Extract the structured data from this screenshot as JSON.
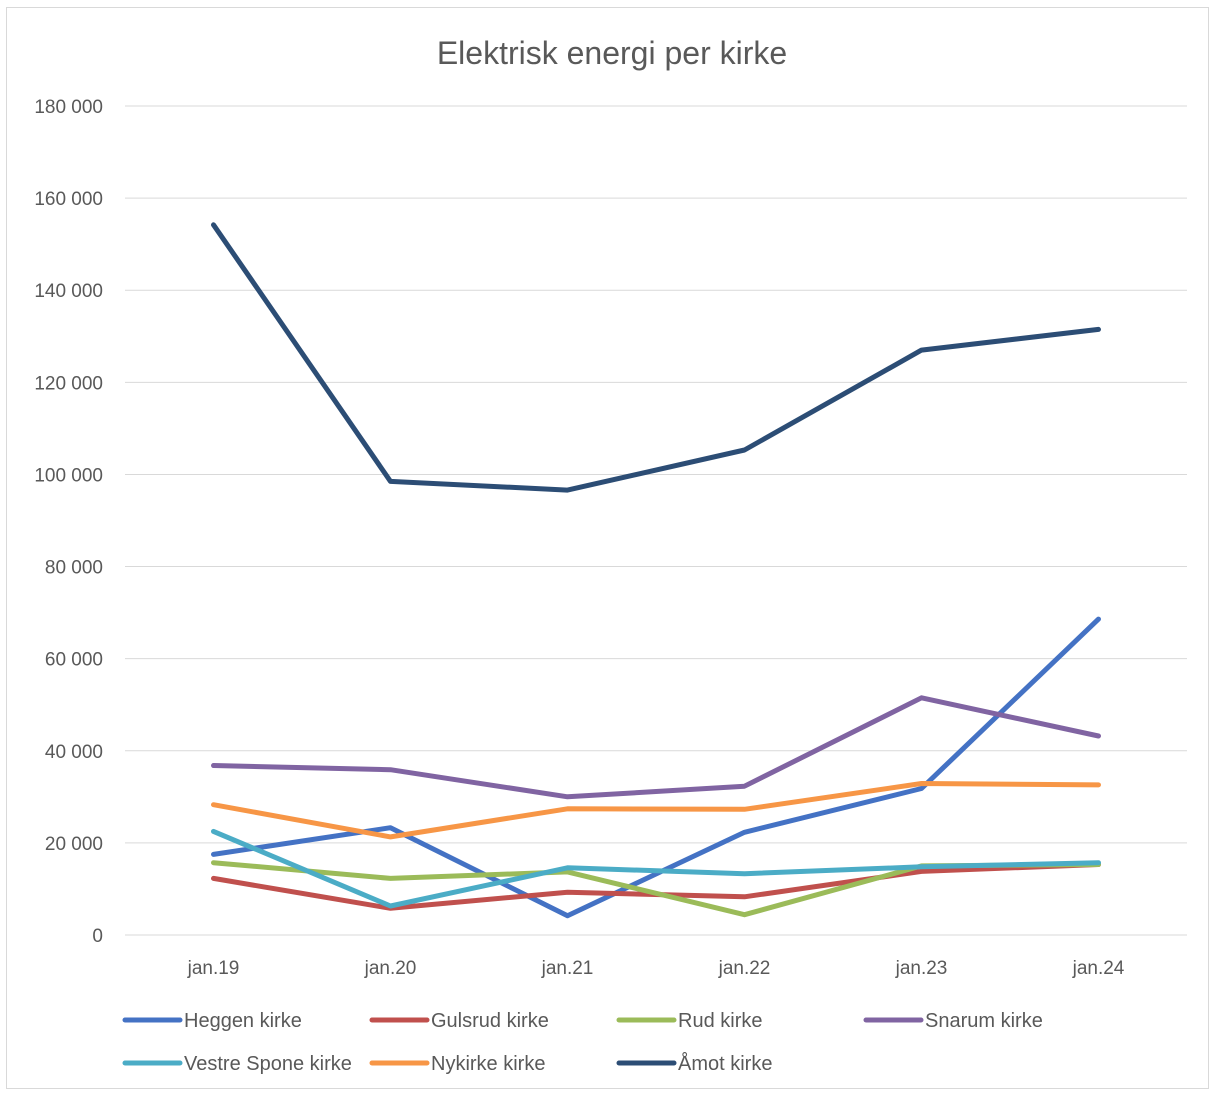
{
  "chart_data": {
    "type": "line",
    "title": "Elektrisk energi per kirke",
    "xlabel": "",
    "ylabel": "",
    "categories": [
      "jan.19",
      "jan.20",
      "jan.21",
      "jan.22",
      "jan.23",
      "jan.24"
    ],
    "ylim": [
      0,
      180000
    ],
    "yticks": [
      {
        "value": 0,
        "label": "0"
      },
      {
        "value": 20000,
        "label": "20 000"
      },
      {
        "value": 40000,
        "label": "40 000"
      },
      {
        "value": 60000,
        "label": "60 000"
      },
      {
        "value": 80000,
        "label": "80 000"
      },
      {
        "value": 100000,
        "label": "100 000"
      },
      {
        "value": 120000,
        "label": "120 000"
      },
      {
        "value": 140000,
        "label": "140 000"
      },
      {
        "value": 160000,
        "label": "160 000"
      },
      {
        "value": 180000,
        "label": "180 000"
      }
    ],
    "grid": true,
    "legend_position": "bottom",
    "series": [
      {
        "name": "Heggen kirke",
        "color": "#4472C4",
        "values": [
          17500,
          23300,
          4200,
          22300,
          31800,
          68600
        ]
      },
      {
        "name": "Gulsrud kirke",
        "color": "#C0504D",
        "values": [
          12300,
          5800,
          9300,
          8300,
          13800,
          15300
        ]
      },
      {
        "name": "Rud kirke",
        "color": "#9BBB59",
        "values": [
          15700,
          12300,
          13700,
          4400,
          15000,
          15300
        ]
      },
      {
        "name": "Snarum kirke",
        "color": "#8064A2",
        "values": [
          36800,
          35900,
          30000,
          32300,
          51500,
          43200
        ]
      },
      {
        "name": "Vestre Spone kirke",
        "color": "#4BACC6",
        "values": [
          22500,
          6300,
          14600,
          13300,
          14800,
          15700
        ]
      },
      {
        "name": "Nykirke kirke",
        "color": "#F79646",
        "values": [
          28300,
          21300,
          27400,
          27300,
          32900,
          32600
        ]
      },
      {
        "name": "Åmot kirke",
        "color": "#2C4D75",
        "values": [
          154200,
          98500,
          96600,
          105300,
          127000,
          131500
        ]
      }
    ]
  }
}
